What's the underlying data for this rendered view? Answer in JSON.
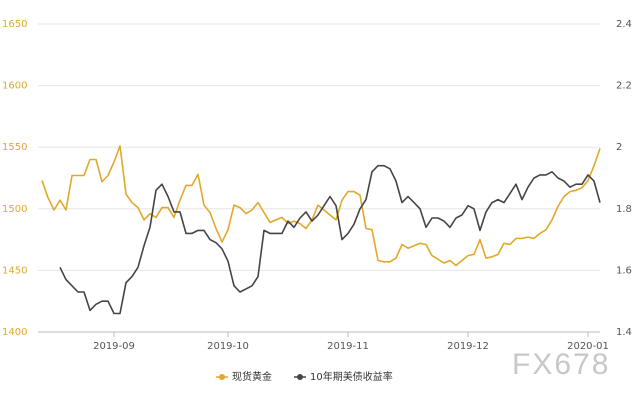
{
  "chart_data": {
    "type": "line",
    "categories": [
      null,
      null,
      null,
      null,
      null,
      null,
      null,
      null,
      null,
      null,
      null,
      null,
      "2019-09",
      null,
      null,
      null,
      null,
      null,
      null,
      null,
      null,
      null,
      null,
      null,
      null,
      null,
      null,
      null,
      null,
      null,
      null,
      "2019-10",
      null,
      null,
      null,
      null,
      null,
      null,
      null,
      null,
      null,
      null,
      null,
      null,
      null,
      null,
      null,
      null,
      null,
      null,
      null,
      "2019-11",
      null,
      null,
      null,
      null,
      null,
      null,
      null,
      null,
      null,
      null,
      null,
      null,
      null,
      null,
      null,
      null,
      null,
      null,
      null,
      "2019-12",
      null,
      null,
      null,
      null,
      null,
      null,
      null,
      null,
      null,
      null,
      null,
      null,
      null,
      null,
      null,
      null,
      null,
      null,
      null,
      "2020-01",
      null,
      null
    ],
    "series": [
      {
        "name": "现货黄金",
        "color": "#e0a92a",
        "values": [
          1523,
          1509,
          1499,
          1507,
          1499,
          1527,
          1527,
          1527,
          1540,
          1540,
          1522,
          1527,
          1538,
          1551,
          1512,
          1505,
          1501,
          1491,
          1496,
          1493,
          1501,
          1501,
          1493,
          1507,
          1519,
          1519,
          1528,
          1503,
          1497,
          1484,
          1473,
          1483,
          1503,
          1501,
          1496,
          1499,
          1505,
          1497,
          1489,
          1491,
          1493,
          1488,
          1490,
          1488,
          1484,
          1491,
          1503,
          1499,
          1495,
          1491,
          1507,
          1514,
          1514,
          1511,
          1484,
          1483,
          1458,
          1457,
          1457,
          1460,
          1471,
          1468,
          1470,
          1472,
          1471,
          1462,
          1459,
          1456,
          1458,
          1454,
          1458,
          1462,
          1463,
          1475,
          1460,
          1461,
          1463,
          1472,
          1471,
          1476,
          1476,
          1477,
          1476,
          1480,
          1483,
          1491,
          1502,
          1510,
          1514,
          1515,
          1517,
          1523,
          1535,
          1549
        ]
      },
      {
        "name": "10年期美债收益率",
        "color": "#454545",
        "axis": "y2",
        "values": [
          null,
          null,
          null,
          1.61,
          1.57,
          1.55,
          1.53,
          1.53,
          1.47,
          1.49,
          1.5,
          1.5,
          1.46,
          1.46,
          1.56,
          1.58,
          1.61,
          1.68,
          1.74,
          1.86,
          1.88,
          1.84,
          1.79,
          1.79,
          1.72,
          1.72,
          1.73,
          1.73,
          1.7,
          1.69,
          1.67,
          1.63,
          1.55,
          1.53,
          1.54,
          1.55,
          1.58,
          1.73,
          1.72,
          1.72,
          1.72,
          1.76,
          1.74,
          1.77,
          1.79,
          1.76,
          1.78,
          1.81,
          1.84,
          1.81,
          1.7,
          1.72,
          1.75,
          1.8,
          1.83,
          1.92,
          1.94,
          1.94,
          1.93,
          1.89,
          1.82,
          1.84,
          1.82,
          1.8,
          1.74,
          1.77,
          1.77,
          1.76,
          1.74,
          1.77,
          1.78,
          1.81,
          1.8,
          1.73,
          1.79,
          1.82,
          1.83,
          1.82,
          1.85,
          1.88,
          1.83,
          1.87,
          1.9,
          1.91,
          1.91,
          1.92,
          1.9,
          1.89,
          1.87,
          1.88,
          1.88,
          1.91,
          1.89,
          1.82
        ]
      }
    ],
    "ylim": [
      1400,
      1650
    ],
    "yticks": [
      1400,
      1450,
      1500,
      1550,
      1600,
      1650
    ],
    "y2lim": [
      1.4,
      2.4
    ],
    "y2ticks": [
      1.4,
      1.6,
      1.8,
      2,
      2.2,
      2.4
    ],
    "grid": true,
    "legend": "bottom",
    "watermark": "FX678"
  }
}
